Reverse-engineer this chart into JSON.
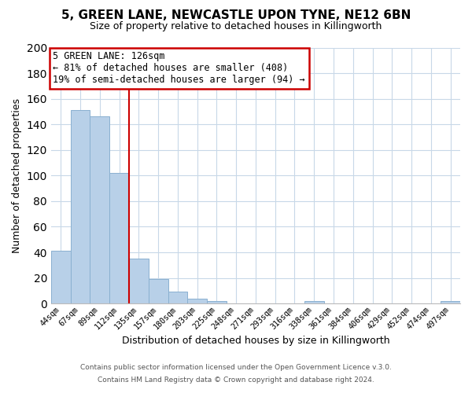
{
  "title1": "5, GREEN LANE, NEWCASTLE UPON TYNE, NE12 6BN",
  "title2": "Size of property relative to detached houses in Killingworth",
  "xlabel": "Distribution of detached houses by size in Killingworth",
  "ylabel": "Number of detached properties",
  "bar_labels": [
    "44sqm",
    "67sqm",
    "89sqm",
    "112sqm",
    "135sqm",
    "157sqm",
    "180sqm",
    "203sqm",
    "225sqm",
    "248sqm",
    "271sqm",
    "293sqm",
    "316sqm",
    "338sqm",
    "361sqm",
    "384sqm",
    "406sqm",
    "429sqm",
    "452sqm",
    "474sqm",
    "497sqm"
  ],
  "bar_values": [
    41,
    151,
    146,
    102,
    35,
    19,
    9,
    4,
    2,
    0,
    0,
    0,
    0,
    2,
    0,
    0,
    0,
    0,
    0,
    0,
    2
  ],
  "bar_color": "#b8d0e8",
  "bar_edge_color": "#8ab0d0",
  "reference_line_color": "#cc0000",
  "ylim": [
    0,
    200
  ],
  "yticks": [
    0,
    20,
    40,
    60,
    80,
    100,
    120,
    140,
    160,
    180,
    200
  ],
  "annotation_title": "5 GREEN LANE: 126sqm",
  "annotation_line1": "← 81% of detached houses are smaller (408)",
  "annotation_line2": "19% of semi-detached houses are larger (94) →",
  "annotation_box_color": "#cc0000",
  "footer1": "Contains HM Land Registry data © Crown copyright and database right 2024.",
  "footer2": "Contains public sector information licensed under the Open Government Licence v.3.0.",
  "background_color": "#ffffff",
  "grid_color": "#c8d8e8"
}
